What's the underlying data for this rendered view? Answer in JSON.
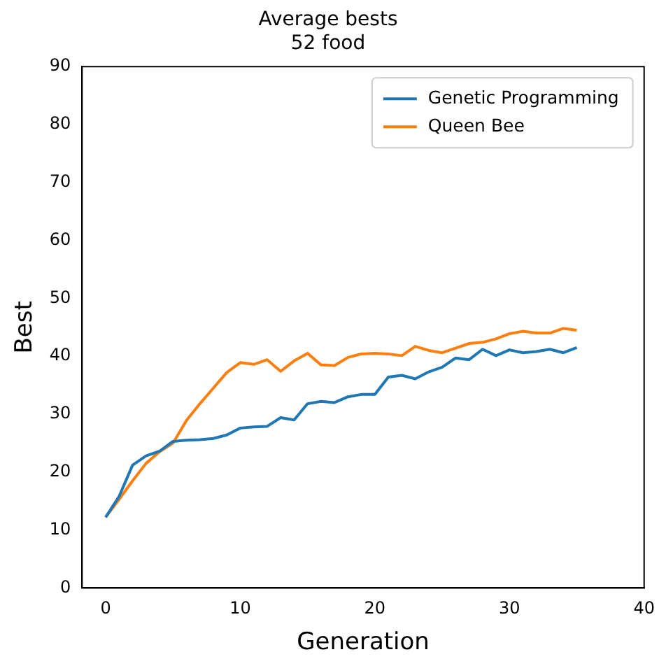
{
  "chart_data": {
    "type": "line",
    "title": "Average bests\n52 food",
    "xlabel": "Generation",
    "ylabel": "Best",
    "x": [
      0,
      1,
      2,
      3,
      4,
      5,
      6,
      7,
      8,
      9,
      10,
      11,
      12,
      13,
      14,
      15,
      16,
      17,
      18,
      19,
      20,
      21,
      22,
      23,
      24,
      25,
      26,
      27,
      28,
      29,
      30,
      31,
      32,
      33,
      34,
      35
    ],
    "series": [
      {
        "name": "Genetic Programming",
        "color": "#1f77b4",
        "values": [
          12.2,
          15.8,
          21.2,
          22.8,
          23.6,
          25.3,
          25.5,
          25.6,
          25.8,
          26.4,
          27.6,
          27.8,
          27.9,
          29.4,
          29.0,
          31.8,
          32.2,
          32.0,
          33.0,
          33.4,
          33.4,
          36.4,
          36.7,
          36.1,
          37.3,
          38.1,
          39.7,
          39.4,
          41.2,
          40.1,
          41.1,
          40.6,
          40.8,
          41.2,
          40.6,
          41.5
        ]
      },
      {
        "name": "Queen Bee",
        "color": "#ff7f0e",
        "values": [
          12.2,
          15.3,
          18.5,
          21.5,
          23.5,
          25.0,
          28.9,
          31.8,
          34.5,
          37.2,
          38.9,
          38.6,
          39.4,
          37.4,
          39.2,
          40.5,
          38.5,
          38.4,
          39.8,
          40.4,
          40.5,
          40.4,
          40.1,
          41.7,
          41.0,
          40.6,
          41.4,
          42.2,
          42.4,
          43.0,
          43.9,
          44.3,
          44.0,
          44.0,
          44.8,
          44.5
        ]
      }
    ],
    "xlim": [
      -1.75,
      40
    ],
    "xticks": [
      0,
      10,
      20,
      30,
      40
    ],
    "ylim": [
      0,
      90
    ],
    "yticks": [
      0,
      10,
      20,
      30,
      40,
      50,
      60,
      70,
      80,
      90
    ],
    "grid": false,
    "legend": "top right",
    "marker": "none",
    "line_style": "solid"
  }
}
